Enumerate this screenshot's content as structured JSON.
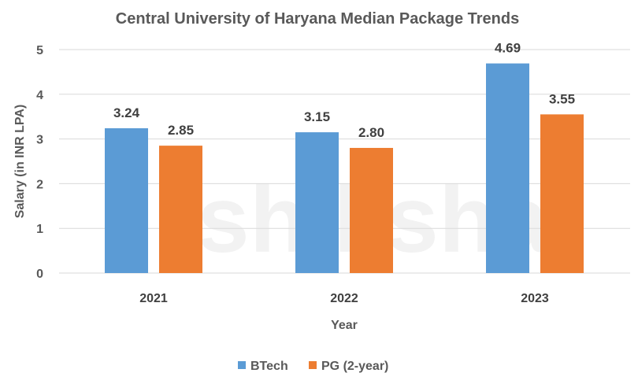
{
  "chart_data": {
    "type": "bar",
    "title": "Central University of Haryana Median Package Trends",
    "xlabel": "Year",
    "ylabel": "Salary (in INR LPA)",
    "categories": [
      "2021",
      "2022",
      "2023"
    ],
    "series": [
      {
        "name": "BTech",
        "values": [
          3.24,
          3.15,
          4.69
        ],
        "labels": [
          "3.24",
          "3.15",
          "4.69"
        ],
        "color": "#5B9BD5"
      },
      {
        "name": "PG (2-year)",
        "values": [
          2.85,
          2.8,
          3.55
        ],
        "labels": [
          "2.85",
          "2.80",
          "3.55"
        ],
        "color": "#ED7D31"
      }
    ],
    "ylim": [
      0,
      5
    ],
    "yticks": [
      "0",
      "1",
      "2",
      "3",
      "4",
      "5"
    ],
    "grid": true,
    "legend_position": "bottom"
  },
  "watermark": "shiksha"
}
